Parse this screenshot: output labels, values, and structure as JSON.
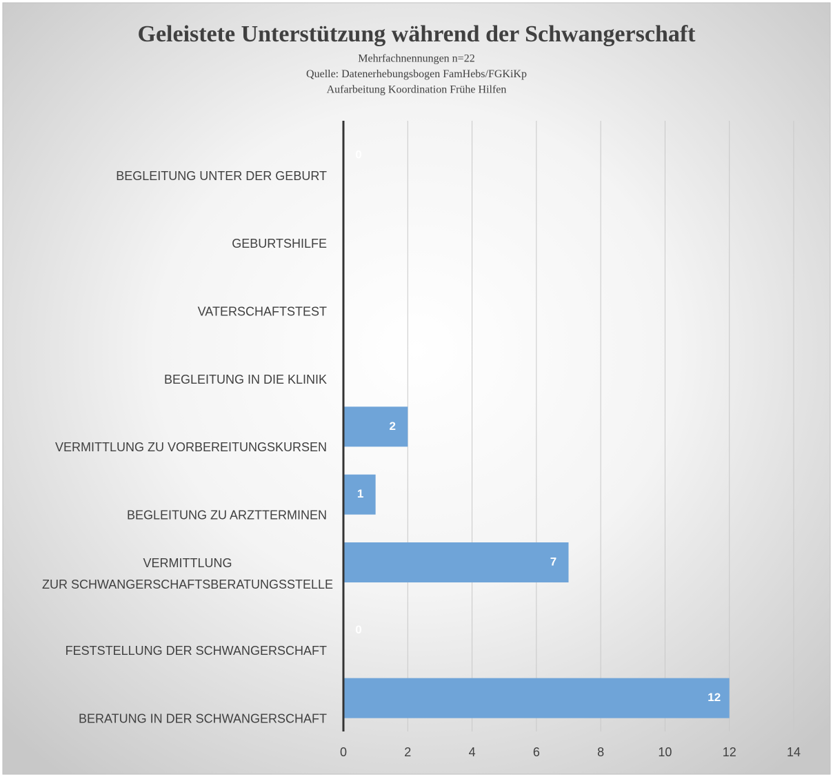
{
  "chart_data": {
    "type": "hbar",
    "title": "Geleistete Unterstützung während der Schwangerschaft",
    "subtitle": [
      "Mehrfachnennungen n=22",
      "Quelle: Datenerhebungsbogen FamHebs/FGKiKp",
      "Aufarbeitung Koordination Frühe Hilfen"
    ],
    "categories": [
      "BEGLEITUNG UNTER DER GEBURT",
      "GEBURTSHILFE",
      "VATERSCHAFTSTEST",
      "BEGLEITUNG IN DIE KLINIK",
      "VERMITTLUNG ZU VORBEREITUNGSKURSEN",
      "BEGLEITUNG ZU ARZTTERMINEN",
      "VERMITTLUNG ZUR SCHWANGERSCHAFTSBERATUNGSSTELLE",
      "FESTSTELLUNG DER SCHWANGERSCHAFT",
      "BERATUNG IN DER SCHWANGERSCHAFT"
    ],
    "values": [
      0,
      0,
      0,
      0,
      2,
      1,
      7,
      0,
      12
    ],
    "value_labels": [
      "0",
      null,
      null,
      null,
      "2",
      "1",
      "7",
      "0",
      "12"
    ],
    "color": "#6fa4d8",
    "xlim": [
      0,
      14
    ],
    "xticks": [
      0,
      2,
      4,
      6,
      8,
      10,
      12,
      14
    ],
    "grid": true
  }
}
